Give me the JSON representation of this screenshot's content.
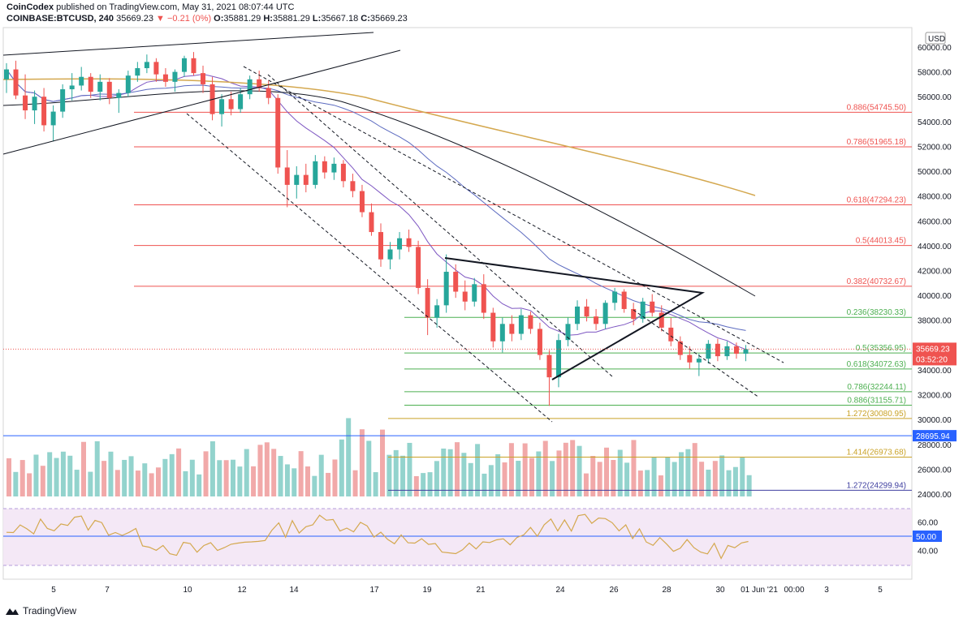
{
  "header": {
    "publisher": "CoinCodex",
    "published_text": "published on TradingView.com, May 31, 2021 08:07:44 UTC",
    "symbol": "COINBASE:BTCUSD, 240",
    "last": "35669.23",
    "change": "▼ −0.21 (0%)",
    "o": "35881.29",
    "h": "35881.29",
    "l": "35667.18",
    "c": "35669.23"
  },
  "footer": {
    "brand": "TradingView"
  },
  "chart_data": {
    "type": "candlestick",
    "currency": "USD",
    "y_range": [
      23000,
      61000
    ],
    "y_ticks": [
      {
        "v": 60000,
        "l": "60000.00"
      },
      {
        "v": 58000,
        "l": "58000.00"
      },
      {
        "v": 56000,
        "l": "56000.00"
      },
      {
        "v": 54000,
        "l": "54000.00"
      },
      {
        "v": 52000,
        "l": "52000.00"
      },
      {
        "v": 50000,
        "l": "50000.00"
      },
      {
        "v": 48000,
        "l": "48000.00"
      },
      {
        "v": 46000,
        "l": "46000.00"
      },
      {
        "v": 44000,
        "l": "44000.00"
      },
      {
        "v": 42000,
        "l": "42000.00"
      },
      {
        "v": 40000,
        "l": "40000.00"
      },
      {
        "v": 38000,
        "l": "38000.00"
      },
      {
        "v": 36000,
        "l": "36000.00"
      },
      {
        "v": 34000,
        "l": "34000.00"
      },
      {
        "v": 32000,
        "l": "32000.00"
      },
      {
        "v": 30000,
        "l": "30000.00"
      },
      {
        "v": 28000,
        "l": "28000.00"
      },
      {
        "v": 26000,
        "l": "26000.00"
      },
      {
        "v": 24000,
        "l": "24000.00"
      }
    ],
    "x_ticks": [
      "5",
      "7",
      "10",
      "12",
      "14",
      "17",
      "19",
      "21",
      "24",
      "26",
      "28",
      "30",
      "01 Jun '21",
      "00:00",
      "3",
      "5"
    ],
    "price_label": {
      "value": "35669.23",
      "countdown": "03:52:20"
    },
    "levels": [
      {
        "label": "0.886(54745.50)",
        "value": 54745.5,
        "color": "#ef5350"
      },
      {
        "label": "0.786(51965.18)",
        "value": 51965.18,
        "color": "#ef5350"
      },
      {
        "label": "0.618(47294.23)",
        "value": 47294.23,
        "color": "#ef5350"
      },
      {
        "label": "0.5(44013.45)",
        "value": 44013.45,
        "color": "#ef5350"
      },
      {
        "label": "0.382(40732.67)",
        "value": 40732.67,
        "color": "#ef5350"
      },
      {
        "label": "0.236(38230.33)",
        "value": 38230.33,
        "color": "#4caf50"
      },
      {
        "label": "0.5(35356.95)",
        "value": 35356.95,
        "color": "#4caf50"
      },
      {
        "label": "0.618(34072.63)",
        "value": 34072.63,
        "color": "#4caf50"
      },
      {
        "label": "0.786(32244.11)",
        "value": 32244.11,
        "color": "#4caf50"
      },
      {
        "label": "0.886(31155.71)",
        "value": 31155.71,
        "color": "#4caf50"
      },
      {
        "label": "1.272(30080.95)",
        "value": 30080.95,
        "color": "#c9a227"
      },
      {
        "label": "1.414(26973.68)",
        "value": 26973.68,
        "color": "#c9a227"
      },
      {
        "label": "1.272(24299.94)",
        "value": 24299.94,
        "color": "#3f3fa0"
      }
    ],
    "horizontal_line": {
      "value": 28695.94,
      "label": "28695.94",
      "color": "#2962ff"
    },
    "rsi": {
      "range": [
        20,
        80
      ],
      "ticks": [
        {
          "v": 60,
          "l": "60.00"
        },
        {
          "v": 40,
          "l": "40.00"
        }
      ],
      "midline": {
        "v": 50,
        "l": "50.00"
      }
    },
    "candles": [
      [
        57400,
        58700,
        56300,
        58200
      ],
      [
        58200,
        58900,
        55800,
        56100
      ],
      [
        56100,
        57800,
        54200,
        54900
      ],
      [
        54900,
        56500,
        53800,
        56000
      ],
      [
        56000,
        56700,
        53200,
        53700
      ],
      [
        53700,
        55300,
        52400,
        54800
      ],
      [
        54800,
        57000,
        54300,
        56600
      ],
      [
        56600,
        57900,
        55700,
        56900
      ],
      [
        56900,
        58400,
        56500,
        57600
      ],
      [
        57600,
        57900,
        55900,
        56400
      ],
      [
        56400,
        57800,
        55700,
        57200
      ],
      [
        57200,
        57500,
        55400,
        55900
      ],
      [
        55900,
        56600,
        54700,
        56300
      ],
      [
        56300,
        58100,
        56000,
        57700
      ],
      [
        57700,
        58800,
        57200,
        58300
      ],
      [
        58300,
        59400,
        57900,
        58800
      ],
      [
        58800,
        59100,
        57200,
        57800
      ],
      [
        57800,
        58300,
        56800,
        57200
      ],
      [
        57200,
        58200,
        56400,
        58000
      ],
      [
        58000,
        59300,
        57600,
        59100
      ],
      [
        59100,
        59600,
        57700,
        57900
      ],
      [
        57900,
        58500,
        56300,
        57000
      ],
      [
        57000,
        57600,
        54100,
        54600
      ],
      [
        54600,
        56200,
        53600,
        55800
      ],
      [
        55800,
        56400,
        54500,
        55000
      ],
      [
        55000,
        56700,
        54700,
        56200
      ],
      [
        56200,
        57700,
        55800,
        57400
      ],
      [
        57400,
        58100,
        56400,
        56700
      ],
      [
        56700,
        57300,
        55400,
        55900
      ],
      [
        55900,
        56200,
        49800,
        50300
      ],
      [
        50300,
        51700,
        47100,
        48900
      ],
      [
        48900,
        50400,
        47800,
        49700
      ],
      [
        49700,
        50600,
        48300,
        48900
      ],
      [
        48900,
        51300,
        48600,
        50800
      ],
      [
        50800,
        51200,
        49400,
        49900
      ],
      [
        49900,
        51100,
        49300,
        50600
      ],
      [
        50600,
        50900,
        48700,
        49200
      ],
      [
        49200,
        49800,
        47900,
        48400
      ],
      [
        48400,
        48900,
        46300,
        46700
      ],
      [
        46700,
        47400,
        44800,
        45100
      ],
      [
        45100,
        45800,
        42300,
        42900
      ],
      [
        42900,
        44300,
        42100,
        43700
      ],
      [
        43700,
        45100,
        42900,
        44600
      ],
      [
        44600,
        45300,
        43500,
        43900
      ],
      [
        43900,
        44400,
        40100,
        40600
      ],
      [
        40600,
        41300,
        36800,
        38200
      ],
      [
        38200,
        39700,
        37400,
        39200
      ],
      [
        39200,
        43300,
        38600,
        41900
      ],
      [
        41900,
        42500,
        39800,
        40300
      ],
      [
        40300,
        41200,
        38800,
        39500
      ],
      [
        39500,
        41400,
        39100,
        40900
      ],
      [
        40900,
        41700,
        38100,
        38600
      ],
      [
        38600,
        39000,
        35800,
        36300
      ],
      [
        36300,
        38200,
        35400,
        37700
      ],
      [
        37700,
        38400,
        36300,
        36900
      ],
      [
        36900,
        38900,
        36400,
        38400
      ],
      [
        38400,
        38700,
        36900,
        37300
      ],
      [
        37300,
        37800,
        34800,
        35200
      ],
      [
        35200,
        35600,
        31100,
        33400
      ],
      [
        33400,
        36900,
        32600,
        36400
      ],
      [
        36400,
        38200,
        35900,
        37700
      ],
      [
        37700,
        39600,
        37200,
        39100
      ],
      [
        39100,
        39700,
        37900,
        38300
      ],
      [
        38300,
        38900,
        37200,
        37700
      ],
      [
        37700,
        39600,
        37300,
        39400
      ],
      [
        39400,
        40600,
        38800,
        40300
      ],
      [
        40300,
        40500,
        38600,
        38900
      ],
      [
        38900,
        39400,
        37600,
        38100
      ],
      [
        38100,
        39800,
        37800,
        39500
      ],
      [
        39500,
        40100,
        38300,
        38600
      ],
      [
        38600,
        39200,
        37100,
        37400
      ],
      [
        37400,
        38200,
        35900,
        36300
      ],
      [
        36300,
        36700,
        34800,
        35200
      ],
      [
        35200,
        35900,
        34100,
        34600
      ],
      [
        34600,
        35300,
        33500,
        34900
      ],
      [
        34900,
        36400,
        34500,
        36100
      ],
      [
        36100,
        36500,
        34700,
        35100
      ],
      [
        35100,
        36300,
        34800,
        35900
      ],
      [
        35900,
        36200,
        34900,
        35300
      ],
      [
        35300,
        36000,
        34700,
        35669
      ]
    ],
    "volume_bars": 110,
    "rsi_points": 110
  }
}
